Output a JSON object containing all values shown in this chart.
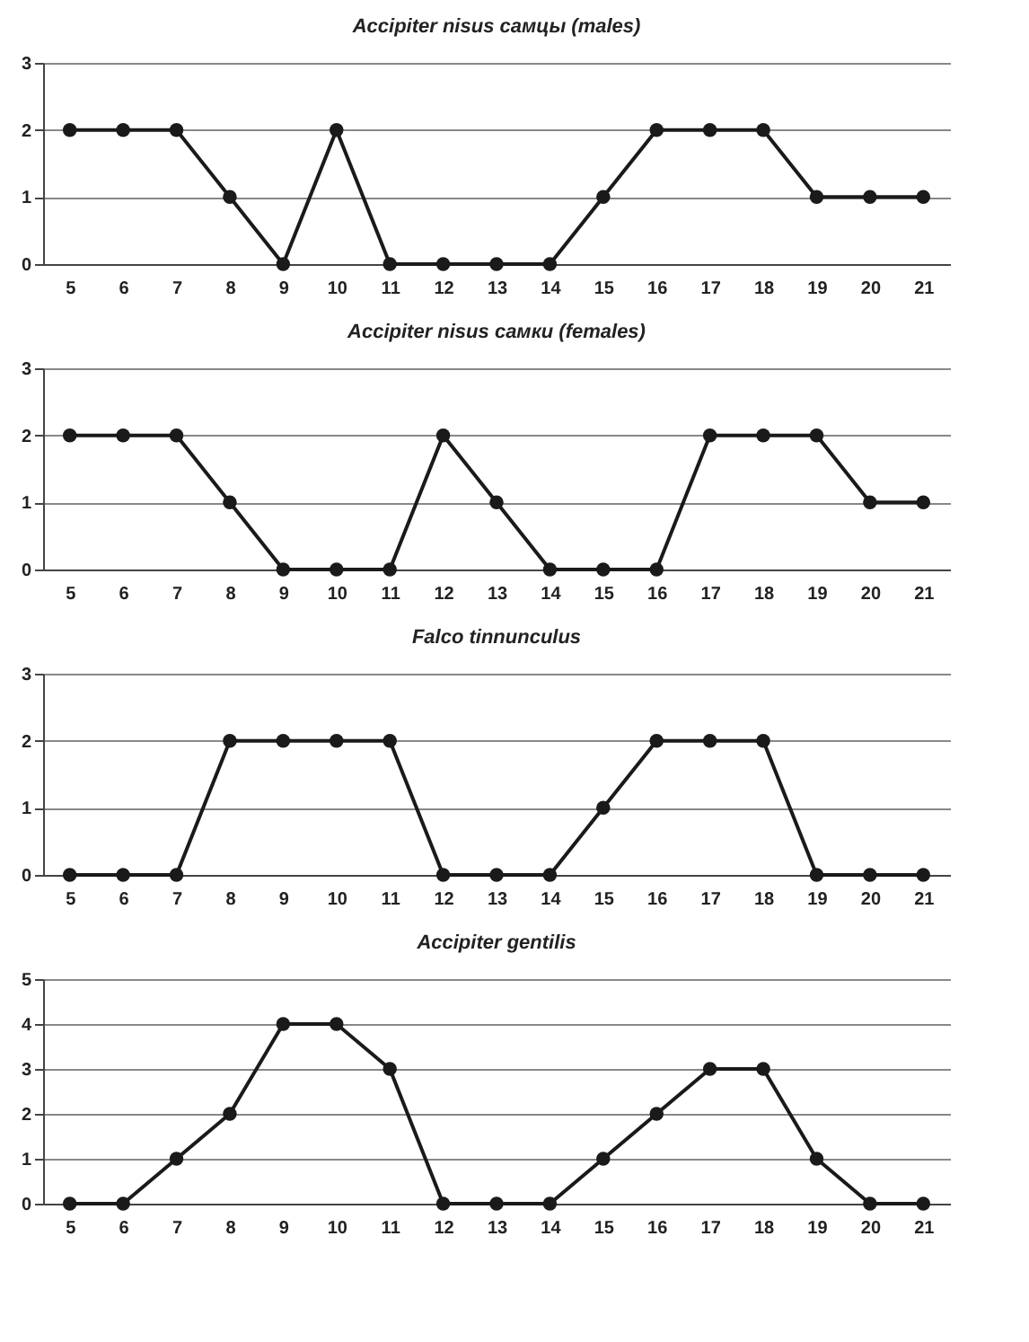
{
  "chart_data": [
    {
      "type": "line",
      "title": "Accipiter nisus самцы (males)",
      "categories": [
        "5",
        "6",
        "7",
        "8",
        "9",
        "10",
        "11",
        "12",
        "13",
        "14",
        "15",
        "16",
        "17",
        "18",
        "19",
        "20",
        "21"
      ],
      "series": [
        {
          "color": "#1a1a1a",
          "values": [
            2,
            2,
            2,
            1,
            0,
            2,
            0,
            0,
            0,
            0,
            1,
            2,
            2,
            2,
            1,
            1,
            1
          ]
        }
      ],
      "ylim": [
        0,
        3
      ],
      "yticks": [
        0,
        1,
        2,
        3
      ],
      "grid": "y",
      "marker": "circle"
    },
    {
      "type": "line",
      "title": "Accipiter nisus самки (females)",
      "categories": [
        "5",
        "6",
        "7",
        "8",
        "9",
        "10",
        "11",
        "12",
        "13",
        "14",
        "15",
        "16",
        "17",
        "18",
        "19",
        "20",
        "21"
      ],
      "series": [
        {
          "color": "#1a1a1a",
          "values": [
            2,
            2,
            2,
            1,
            0,
            0,
            0,
            2,
            1,
            0,
            0,
            0,
            2,
            2,
            2,
            1,
            1
          ]
        }
      ],
      "ylim": [
        0,
        3
      ],
      "yticks": [
        0,
        1,
        2,
        3
      ],
      "grid": "y",
      "marker": "circle"
    },
    {
      "type": "line",
      "title": "Falco tinnunculus",
      "categories": [
        "5",
        "6",
        "7",
        "8",
        "9",
        "10",
        "11",
        "12",
        "13",
        "14",
        "15",
        "16",
        "17",
        "18",
        "19",
        "20",
        "21"
      ],
      "series": [
        {
          "color": "#1a1a1a",
          "values": [
            0,
            0,
            0,
            2,
            2,
            2,
            2,
            0,
            0,
            0,
            1,
            2,
            2,
            2,
            0,
            0,
            0
          ]
        }
      ],
      "ylim": [
        0,
        3
      ],
      "yticks": [
        0,
        1,
        2,
        3
      ],
      "grid": "y",
      "marker": "circle"
    },
    {
      "type": "line",
      "title": "Accipiter gentilis",
      "categories": [
        "5",
        "6",
        "7",
        "8",
        "9",
        "10",
        "11",
        "12",
        "13",
        "14",
        "15",
        "16",
        "17",
        "18",
        "19",
        "20",
        "21"
      ],
      "series": [
        {
          "color": "#1a1a1a",
          "values": [
            0,
            0,
            1,
            2,
            4,
            4,
            3,
            0,
            0,
            0,
            1,
            2,
            3,
            3,
            1,
            0,
            0
          ]
        }
      ],
      "ylim": [
        0,
        5
      ],
      "yticks": [
        0,
        1,
        2,
        3,
        4,
        5
      ],
      "grid": "y",
      "marker": "circle"
    }
  ]
}
